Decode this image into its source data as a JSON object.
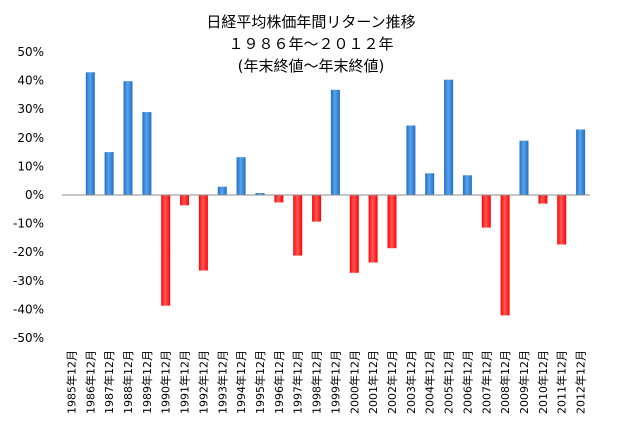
{
  "chart_data": {
    "type": "bar",
    "title_lines": [
      "日経平均株価年間リターン推移",
      "１９８６年～２０１２年",
      "(年末終値～年末終値)"
    ],
    "xlabel": "",
    "ylabel": "",
    "ylim": [
      -0.5,
      0.5
    ],
    "ytick_values": [
      0.5,
      0.4,
      0.3,
      0.2,
      0.1,
      0,
      -0.1,
      -0.2,
      -0.3,
      -0.4,
      -0.5
    ],
    "ytick_labels": [
      "50%",
      "40%",
      "30%",
      "20%",
      "10%",
      "0%",
      "-10%",
      "-20%",
      "-30%",
      "-40%",
      "-50%"
    ],
    "grid": false,
    "legend": "none",
    "colors": {
      "positive": "#1f6fc5",
      "negative": "#ff0000",
      "axis": "#8c8c8c"
    },
    "categories": [
      "1985年12月",
      "1986年12月",
      "1987年12月",
      "1988年12月",
      "1989年12月",
      "1990年12月",
      "1991年12月",
      "1992年12月",
      "1993年12月",
      "1994年12月",
      "1995年12月",
      "1996年12月",
      "1997年12月",
      "1998年12月",
      "1999年12月",
      "2000年12月",
      "2001年12月",
      "2002年12月",
      "2003年12月",
      "2004年12月",
      "2005年12月",
      "2006年12月",
      "2007年12月",
      "2008年12月",
      "2009年12月",
      "2010年12月",
      "2011年12月",
      "2012年12月"
    ],
    "values": [
      null,
      0.429,
      0.15,
      0.398,
      0.29,
      -0.387,
      -0.036,
      -0.264,
      0.029,
      0.132,
      0.007,
      -0.026,
      -0.212,
      -0.093,
      0.368,
      -0.272,
      -0.236,
      -0.186,
      0.243,
      0.076,
      0.403,
      0.069,
      -0.114,
      -0.421,
      0.19,
      -0.03,
      -0.173,
      0.229
    ]
  }
}
